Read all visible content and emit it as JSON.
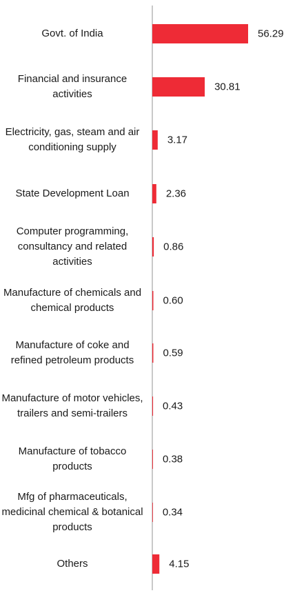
{
  "chart_data": {
    "type": "bar",
    "orientation": "horizontal",
    "categories": [
      "Govt. of India",
      "Financial and insurance activities",
      "Electricity, gas, steam and air conditioning supply",
      "State Development Loan",
      "Computer programming, consultancy and related activities",
      "Manufacture of chemicals and chemical products",
      "Manufacture of coke and refined petroleum products",
      "Manufacture of motor vehicles, trailers and semi-trailers",
      "Manufacture of tobacco products",
      "Mfg of pharmaceuticals, medicinal chemical & botanical products",
      "Others"
    ],
    "values": [
      56.29,
      30.81,
      3.17,
      2.36,
      0.86,
      0.6,
      0.59,
      0.43,
      0.38,
      0.34,
      4.15
    ],
    "value_labels": [
      "56.29",
      "30.81",
      "3.17",
      "2.36",
      "0.86",
      "0.60",
      "0.59",
      "0.43",
      "0.38",
      "0.34",
      "4.15"
    ],
    "bar_color": "#ee2b36",
    "axis_color": "#b5b5b5",
    "title": "",
    "xlabel": "",
    "ylabel": "",
    "grid": false
  }
}
